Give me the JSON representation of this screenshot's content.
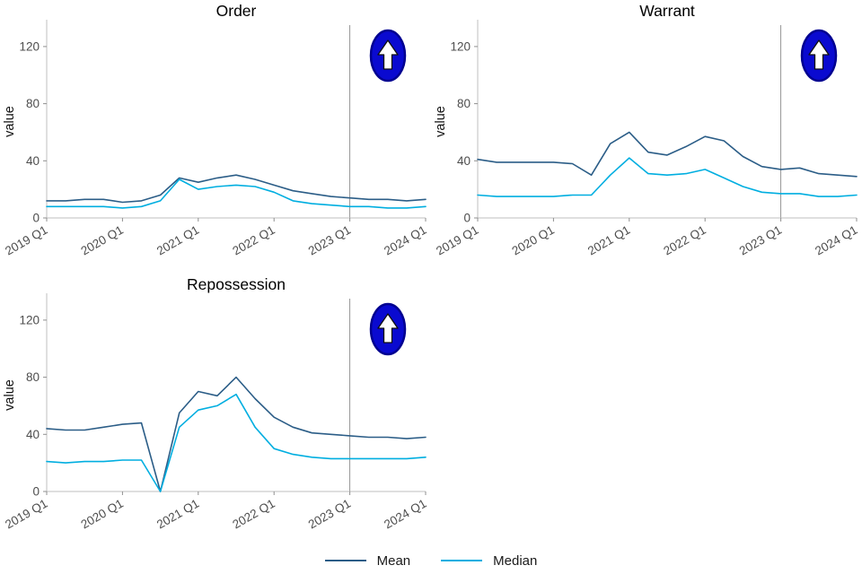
{
  "page": {
    "background": "#ffffff"
  },
  "legend": {
    "items": [
      {
        "label": "Mean",
        "color": "#2b5d87"
      },
      {
        "label": "Median",
        "color": "#00aee0"
      }
    ]
  },
  "icon": {
    "name": "up-arrow-sign",
    "bg": "#0a0ad0",
    "border": "#000090",
    "arrow": "#ffffff"
  },
  "chart_data": [
    {
      "type": "line",
      "title": "Order",
      "ylabel": "value",
      "xlabel": "",
      "ylim": [
        0,
        135
      ],
      "yticks": [
        0,
        40,
        80,
        120
      ],
      "x_tick_labels": [
        "2019 Q1",
        "2020 Q1",
        "2021 Q1",
        "2022 Q1",
        "2023 Q1",
        "2024 Q1"
      ],
      "x_tick_positions": [
        0,
        4,
        8,
        12,
        16,
        20
      ],
      "vline_x": 16,
      "grid": false,
      "legend_position": "bottom",
      "categories": [
        "2019 Q1",
        "2019 Q2",
        "2019 Q3",
        "2019 Q4",
        "2020 Q1",
        "2020 Q2",
        "2020 Q3",
        "2020 Q4",
        "2021 Q1",
        "2021 Q2",
        "2021 Q3",
        "2021 Q4",
        "2022 Q1",
        "2022 Q2",
        "2022 Q3",
        "2022 Q4",
        "2023 Q1",
        "2023 Q2",
        "2023 Q3",
        "2023 Q4",
        "2024 Q1"
      ],
      "series": [
        {
          "name": "Mean",
          "color": "#2b5d87",
          "values": [
            12,
            12,
            13,
            13,
            11,
            12,
            16,
            28,
            25,
            28,
            30,
            27,
            23,
            19,
            17,
            15,
            14,
            13,
            13,
            12,
            13
          ]
        },
        {
          "name": "Median",
          "color": "#00aee0",
          "values": [
            8,
            8,
            8,
            8,
            7,
            8,
            12,
            27,
            20,
            22,
            23,
            22,
            18,
            12,
            10,
            9,
            8,
            8,
            7,
            7,
            8
          ]
        }
      ]
    },
    {
      "type": "line",
      "title": "Warrant",
      "ylabel": "value",
      "xlabel": "",
      "ylim": [
        0,
        135
      ],
      "yticks": [
        0,
        40,
        80,
        120
      ],
      "x_tick_labels": [
        "2019 Q1",
        "2020 Q1",
        "2021 Q1",
        "2022 Q1",
        "2023 Q1",
        "2024 Q1"
      ],
      "x_tick_positions": [
        0,
        4,
        8,
        12,
        16,
        20
      ],
      "vline_x": 16,
      "grid": false,
      "legend_position": "bottom",
      "categories": [
        "2019 Q1",
        "2019 Q2",
        "2019 Q3",
        "2019 Q4",
        "2020 Q1",
        "2020 Q2",
        "2020 Q3",
        "2020 Q4",
        "2021 Q1",
        "2021 Q2",
        "2021 Q3",
        "2021 Q4",
        "2022 Q1",
        "2022 Q2",
        "2022 Q3",
        "2022 Q4",
        "2023 Q1",
        "2023 Q2",
        "2023 Q3",
        "2023 Q4",
        "2024 Q1"
      ],
      "series": [
        {
          "name": "Mean",
          "color": "#2b5d87",
          "values": [
            41,
            39,
            39,
            39,
            39,
            38,
            30,
            52,
            60,
            46,
            44,
            50,
            57,
            54,
            43,
            36,
            34,
            35,
            31,
            30,
            29
          ]
        },
        {
          "name": "Median",
          "color": "#00aee0",
          "values": [
            16,
            15,
            15,
            15,
            15,
            16,
            16,
            30,
            42,
            31,
            30,
            31,
            34,
            28,
            22,
            18,
            17,
            17,
            15,
            15,
            16
          ]
        }
      ]
    },
    {
      "type": "line",
      "title": "Repossession",
      "ylabel": "value",
      "xlabel": "",
      "ylim": [
        0,
        135
      ],
      "yticks": [
        0,
        40,
        80,
        120
      ],
      "x_tick_labels": [
        "2019 Q1",
        "2020 Q1",
        "2021 Q1",
        "2022 Q1",
        "2023 Q1",
        "2024 Q1"
      ],
      "x_tick_positions": [
        0,
        4,
        8,
        12,
        16,
        20
      ],
      "vline_x": 16,
      "grid": false,
      "legend_position": "bottom",
      "categories": [
        "2019 Q1",
        "2019 Q2",
        "2019 Q3",
        "2019 Q4",
        "2020 Q1",
        "2020 Q2",
        "2020 Q3",
        "2020 Q4",
        "2021 Q1",
        "2021 Q2",
        "2021 Q3",
        "2021 Q4",
        "2022 Q1",
        "2022 Q2",
        "2022 Q3",
        "2022 Q4",
        "2023 Q1",
        "2023 Q2",
        "2023 Q3",
        "2023 Q4",
        "2024 Q1"
      ],
      "series": [
        {
          "name": "Mean",
          "color": "#2b5d87",
          "values": [
            44,
            43,
            43,
            45,
            47,
            48,
            0,
            55,
            70,
            67,
            80,
            65,
            52,
            45,
            41,
            40,
            39,
            38,
            38,
            37,
            38
          ]
        },
        {
          "name": "Median",
          "color": "#00aee0",
          "values": [
            21,
            20,
            21,
            21,
            22,
            22,
            0,
            45,
            57,
            60,
            68,
            45,
            30,
            26,
            24,
            23,
            23,
            23,
            23,
            23,
            24
          ]
        }
      ]
    }
  ]
}
